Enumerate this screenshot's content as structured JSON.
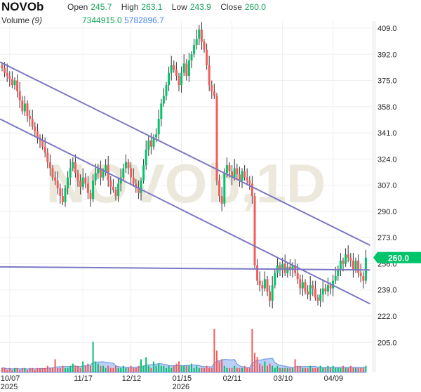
{
  "header": {
    "symbol": "NOVOb",
    "open_label": "Open",
    "open": "245.7",
    "high_label": "High",
    "high": "263.1",
    "low_label": "Low",
    "low": "243.9",
    "close_label": "Close",
    "close": "260.0",
    "volume_label": "Volume",
    "volume_period": "(9)",
    "volume": "7344915.0",
    "volume_ma": "5782896.7"
  },
  "watermark": "NOVOb,1D",
  "last_price_label": "260.0",
  "colors": {
    "up": "#00c46a",
    "down": "#f45b5b",
    "trend": "#7b78c4",
    "volume_area": "#a9c4f5",
    "last": "#00c46a"
  },
  "chart_data": {
    "type": "candlestick",
    "y_ticks": [
      "409.0",
      "392.0",
      "375.0",
      "358.0",
      "341.0",
      "324.0",
      "307.0",
      "290.0",
      "273.0",
      "256.0",
      "239.0",
      "222.0",
      "205.0"
    ],
    "ylim": [
      222,
      409
    ],
    "x_ticks": [
      {
        "label": "10/07",
        "sub": "2025",
        "index": 3
      },
      {
        "label": "11/17",
        "index": 32
      },
      {
        "label": "12/12",
        "index": 51
      },
      {
        "label": "01/15",
        "sub": "2026",
        "index": 71
      },
      {
        "label": "02/11",
        "index": 91
      },
      {
        "label": "03/10",
        "index": 111
      },
      {
        "label": "04/09",
        "index": 131
      }
    ],
    "first_open": 385,
    "closes": [
      383,
      380,
      378,
      376,
      372,
      375,
      368,
      362,
      355,
      360,
      352,
      350,
      345,
      342,
      338,
      336,
      332,
      328,
      322,
      318,
      312,
      310,
      305,
      300,
      296,
      305,
      312,
      318,
      322,
      315,
      310,
      306,
      312,
      308,
      302,
      298,
      310,
      315,
      318,
      312,
      316,
      320,
      310,
      306,
      304,
      300,
      308,
      312,
      318,
      322,
      318,
      312,
      308,
      305,
      302,
      310,
      320,
      330,
      336,
      332,
      338,
      340,
      350,
      360,
      365,
      372,
      380,
      385,
      382,
      378,
      372,
      380,
      386,
      378,
      388,
      392,
      398,
      402,
      408,
      400,
      395,
      385,
      372,
      368,
      365,
      310,
      300,
      295,
      315,
      320,
      316,
      312,
      318,
      314,
      310,
      316,
      312,
      310,
      308,
      300,
      255,
      245,
      242,
      240,
      246,
      238,
      232,
      242,
      250,
      255,
      252,
      256,
      250,
      254,
      252,
      255,
      250,
      246,
      240,
      244,
      238,
      236,
      242,
      240,
      234,
      232,
      236,
      240,
      238,
      242,
      240,
      245,
      248,
      252,
      258,
      256,
      262,
      260,
      258,
      252,
      258,
      250,
      248,
      245,
      260
    ],
    "volumes": [
      2,
      2,
      1,
      2,
      1,
      2,
      2,
      1,
      2,
      2,
      1,
      2,
      2,
      1,
      2,
      2,
      2,
      2,
      3,
      2,
      2,
      6,
      2,
      2,
      3,
      2,
      2,
      3,
      4,
      3,
      3,
      2,
      5,
      3,
      4,
      3,
      14,
      5,
      4,
      3,
      3,
      2,
      3,
      2,
      2,
      3,
      2,
      2,
      3,
      2,
      2,
      3,
      2,
      2,
      3,
      6,
      3,
      7,
      3,
      2,
      5,
      3,
      4,
      3,
      3,
      2,
      3,
      2,
      3,
      4,
      5,
      3,
      3,
      3,
      3,
      4,
      2,
      3,
      2,
      2,
      2,
      3,
      2,
      2,
      20,
      10,
      5,
      6,
      3,
      2,
      2,
      2,
      3,
      2,
      2,
      2,
      3,
      2,
      2,
      20,
      9,
      7,
      4,
      3,
      5,
      3,
      4,
      3,
      2,
      3,
      2,
      2,
      2,
      2,
      2,
      2,
      6,
      3,
      3,
      2,
      2,
      2,
      3,
      2,
      2,
      2,
      3,
      2,
      2,
      3,
      2,
      3,
      2,
      2,
      2,
      3,
      2,
      2,
      3,
      2,
      2,
      2,
      2,
      2,
      3
    ],
    "trendlines": [
      {
        "from": [
          0,
          387
        ],
        "to": [
          144,
          268
        ]
      },
      {
        "from": [
          0,
          350
        ],
        "to": [
          144,
          230
        ]
      },
      {
        "from": [
          0,
          254
        ],
        "to": [
          144,
          252
        ]
      }
    ]
  }
}
